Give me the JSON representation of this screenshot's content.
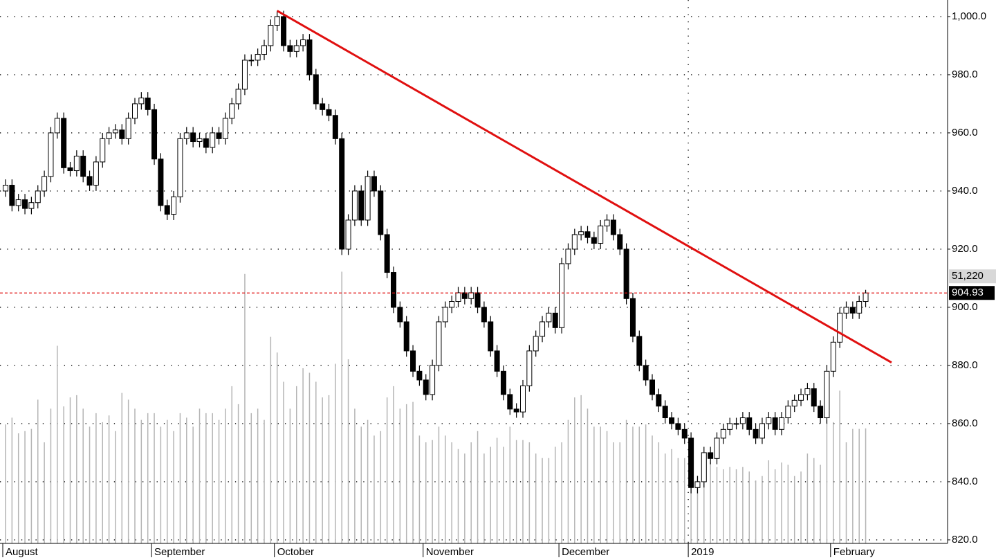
{
  "chart_data": {
    "type": "candlestick",
    "categories": [
      "August",
      null,
      null,
      null,
      null,
      null,
      null,
      null,
      null,
      null,
      null,
      null,
      null,
      null,
      null,
      null,
      null,
      null,
      null,
      null,
      null,
      null,
      null,
      "September",
      null,
      null,
      null,
      null,
      null,
      null,
      null,
      null,
      null,
      null,
      null,
      null,
      null,
      null,
      null,
      null,
      null,
      null,
      "October",
      null,
      null,
      null,
      null,
      null,
      null,
      null,
      null,
      null,
      null,
      null,
      null,
      null,
      null,
      null,
      null,
      null,
      null,
      null,
      null,
      null,
      null,
      "November",
      null,
      null,
      null,
      null,
      null,
      null,
      null,
      null,
      null,
      null,
      null,
      null,
      null,
      null,
      null,
      null,
      null,
      null,
      null,
      null,
      "December",
      null,
      null,
      null,
      null,
      null,
      null,
      null,
      null,
      null,
      null,
      null,
      null,
      null,
      null,
      null,
      null,
      null,
      null,
      null,
      "2019",
      null,
      null,
      null,
      null,
      null,
      null,
      null,
      null,
      null,
      null,
      null,
      null,
      null,
      null,
      null,
      null,
      null,
      null,
      null,
      null,
      null,
      "February",
      null,
      null,
      null,
      null,
      null
    ],
    "open": [
      940,
      942,
      935,
      937,
      934,
      936,
      940,
      945,
      960,
      965,
      948,
      947,
      952,
      945,
      942,
      950,
      958,
      960,
      961,
      958,
      965,
      970,
      972,
      968,
      951,
      935,
      932,
      938,
      958,
      960,
      957,
      958,
      955,
      960,
      958,
      965,
      970,
      975,
      985,
      985,
      987,
      990,
      997,
      1000,
      990,
      988,
      990,
      992,
      980,
      970,
      968,
      966,
      958,
      920,
      930,
      940,
      930,
      945,
      940,
      925,
      912,
      900,
      895,
      885,
      878,
      875,
      870,
      880,
      895,
      900,
      902,
      905,
      903,
      905,
      900,
      895,
      885,
      878,
      870,
      865,
      864,
      873,
      885,
      890,
      895,
      898,
      893,
      915,
      920,
      925,
      926,
      924,
      922,
      928,
      930,
      925,
      920,
      903,
      890,
      880,
      875,
      870,
      866,
      862,
      860,
      858,
      855,
      838,
      840,
      850,
      848,
      855,
      858,
      860,
      860,
      862,
      858,
      855,
      860,
      862,
      858,
      862,
      866,
      868,
      870,
      872,
      866,
      862,
      878,
      888,
      898,
      900,
      898,
      902
    ],
    "high": [
      944,
      944,
      939,
      939,
      938,
      942,
      947,
      962,
      967,
      967,
      950,
      954,
      954,
      947,
      952,
      960,
      962,
      963,
      963,
      967,
      972,
      974,
      974,
      970,
      953,
      937,
      940,
      960,
      962,
      962,
      960,
      960,
      962,
      962,
      967,
      972,
      977,
      987,
      987,
      989,
      992,
      999,
      1002,
      1002,
      992,
      992,
      994,
      994,
      982,
      972,
      970,
      968,
      960,
      932,
      942,
      942,
      947,
      947,
      942,
      927,
      914,
      902,
      897,
      887,
      880,
      877,
      882,
      897,
      902,
      904,
      907,
      907,
      907,
      907,
      902,
      897,
      887,
      880,
      872,
      867,
      875,
      887,
      892,
      897,
      900,
      900,
      917,
      922,
      927,
      928,
      928,
      926,
      930,
      932,
      932,
      927,
      922,
      905,
      892,
      882,
      877,
      872,
      868,
      864,
      862,
      860,
      857,
      842,
      852,
      852,
      857,
      860,
      862,
      862,
      864,
      864,
      860,
      862,
      864,
      864,
      864,
      868,
      870,
      872,
      874,
      874,
      868,
      880,
      890,
      900,
      902,
      902,
      904,
      906
    ],
    "low": [
      938,
      933,
      933,
      932,
      932,
      934,
      938,
      943,
      958,
      946,
      945,
      945,
      943,
      940,
      940,
      948,
      956,
      958,
      956,
      956,
      963,
      968,
      966,
      949,
      933,
      930,
      930,
      936,
      956,
      955,
      955,
      953,
      953,
      956,
      956,
      963,
      968,
      973,
      983,
      983,
      985,
      988,
      995,
      988,
      986,
      986,
      988,
      978,
      968,
      966,
      964,
      956,
      918,
      918,
      928,
      928,
      928,
      938,
      923,
      910,
      898,
      893,
      883,
      876,
      873,
      868,
      868,
      878,
      893,
      898,
      900,
      901,
      901,
      898,
      893,
      883,
      876,
      868,
      863,
      862,
      862,
      871,
      883,
      888,
      893,
      891,
      891,
      913,
      918,
      923,
      922,
      920,
      920,
      926,
      923,
      918,
      901,
      888,
      878,
      873,
      868,
      864,
      860,
      858,
      856,
      853,
      836,
      836,
      838,
      846,
      846,
      853,
      856,
      858,
      858,
      856,
      853,
      853,
      858,
      856,
      856,
      860,
      864,
      866,
      868,
      864,
      860,
      860,
      876,
      886,
      896,
      896,
      896,
      900
    ],
    "close": [
      942,
      935,
      937,
      934,
      936,
      940,
      945,
      960,
      965,
      948,
      947,
      952,
      945,
      942,
      950,
      958,
      960,
      961,
      958,
      965,
      970,
      972,
      968,
      951,
      935,
      932,
      938,
      958,
      960,
      957,
      958,
      955,
      960,
      958,
      965,
      970,
      975,
      985,
      985,
      987,
      990,
      997,
      1000,
      990,
      988,
      990,
      992,
      980,
      970,
      968,
      966,
      958,
      920,
      930,
      940,
      930,
      945,
      940,
      925,
      912,
      900,
      895,
      885,
      878,
      875,
      870,
      880,
      895,
      900,
      902,
      905,
      903,
      905,
      900,
      895,
      885,
      878,
      870,
      865,
      864,
      873,
      885,
      890,
      895,
      898,
      893,
      915,
      920,
      925,
      926,
      924,
      922,
      928,
      930,
      925,
      920,
      903,
      890,
      880,
      875,
      870,
      866,
      862,
      860,
      858,
      855,
      838,
      840,
      850,
      848,
      855,
      858,
      860,
      860,
      862,
      858,
      855,
      860,
      862,
      858,
      862,
      866,
      868,
      870,
      872,
      866,
      862,
      878,
      888,
      898,
      900,
      898,
      902,
      904.93
    ],
    "volume": [
      53000,
      56000,
      49000,
      50000,
      51000,
      64000,
      45000,
      60000,
      88000,
      61000,
      65000,
      66000,
      60000,
      52000,
      58000,
      54000,
      57000,
      50000,
      67000,
      64000,
      60000,
      55000,
      58000,
      58000,
      52000,
      55000,
      50000,
      58000,
      56000,
      52000,
      60000,
      58000,
      58000,
      55000,
      60000,
      70000,
      62000,
      120000,
      58000,
      60000,
      55000,
      92000,
      85000,
      72000,
      60000,
      70000,
      78000,
      76000,
      72000,
      65000,
      66000,
      80000,
      121000,
      82000,
      60000,
      52000,
      55000,
      48000,
      50000,
      65000,
      70000,
      60000,
      62000,
      63000,
      48000,
      45000,
      46000,
      52000,
      48000,
      45000,
      42000,
      40000,
      45000,
      50000,
      40000,
      43000,
      47000,
      43000,
      52000,
      46000,
      46000,
      45000,
      40000,
      38000,
      38000,
      43000,
      45000,
      55000,
      65000,
      66000,
      60000,
      52000,
      52000,
      50000,
      45000,
      45000,
      55000,
      52000,
      52000,
      53000,
      48000,
      45000,
      40000,
      42000,
      38000,
      38000,
      38000,
      30000,
      35000,
      36000,
      34000,
      33000,
      34000,
      33000,
      34000,
      32000,
      28000,
      30000,
      37000,
      33000,
      36000,
      35000,
      30000,
      32000,
      40000,
      38000,
      35000,
      55000,
      54000,
      68000,
      45000,
      51000,
      51000,
      51220
    ],
    "volume_label": "51,220",
    "ylim": [
      817.6,
      1005.7
    ],
    "yticks": [
      {
        "value": 820,
        "label": "820.0"
      },
      {
        "value": 840,
        "label": "840.0"
      },
      {
        "value": 860,
        "label": "860.0"
      },
      {
        "value": 880,
        "label": "880.0"
      },
      {
        "value": 900,
        "label": "900.0"
      },
      {
        "value": 920,
        "label": "920.0"
      },
      {
        "value": 940,
        "label": "940.0"
      },
      {
        "value": 960,
        "label": "960.0"
      },
      {
        "value": 980,
        "label": "980.0"
      },
      {
        "value": 1000,
        "label": "1,000.0"
      }
    ],
    "grid": true,
    "up_color": "#ffffff",
    "down_color": "#000000",
    "volume_color": "#b4b4b4",
    "trendline": {
      "x": [
        42,
        137
      ],
      "y": [
        1002,
        881
      ],
      "color": "#e01010"
    }
  }
}
